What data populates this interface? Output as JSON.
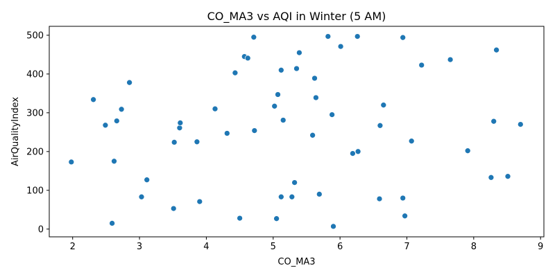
{
  "chart_data": {
    "type": "scatter",
    "title": "CO_MA3 vs AQI in Winter (5 AM)",
    "xlabel": "CO_MA3",
    "ylabel": "AirQualityIndex",
    "xlim": [
      1.65,
      9.05
    ],
    "ylim": [
      -20,
      523
    ],
    "xticks": [
      2,
      3,
      4,
      5,
      6,
      7,
      8,
      9
    ],
    "yticks": [
      0,
      100,
      200,
      300,
      400,
      500
    ],
    "grid": false,
    "legend": "none",
    "marker_color": "#1f77b4",
    "points": [
      [
        1.98,
        173
      ],
      [
        2.31,
        334
      ],
      [
        2.49,
        268
      ],
      [
        2.59,
        15
      ],
      [
        2.62,
        175
      ],
      [
        2.66,
        279
      ],
      [
        2.73,
        309
      ],
      [
        2.85,
        378
      ],
      [
        3.03,
        83
      ],
      [
        3.11,
        127
      ],
      [
        3.51,
        53
      ],
      [
        3.52,
        224
      ],
      [
        3.6,
        261
      ],
      [
        3.61,
        274
      ],
      [
        3.86,
        225
      ],
      [
        3.9,
        71
      ],
      [
        4.13,
        310
      ],
      [
        4.31,
        247
      ],
      [
        4.43,
        403
      ],
      [
        4.5,
        28
      ],
      [
        4.57,
        445
      ],
      [
        4.62,
        441
      ],
      [
        4.71,
        495
      ],
      [
        4.72,
        254
      ],
      [
        5.02,
        317
      ],
      [
        5.05,
        27
      ],
      [
        5.07,
        347
      ],
      [
        5.12,
        410
      ],
      [
        5.12,
        83
      ],
      [
        5.15,
        281
      ],
      [
        5.28,
        83
      ],
      [
        5.32,
        120
      ],
      [
        5.35,
        414
      ],
      [
        5.39,
        455
      ],
      [
        5.59,
        242
      ],
      [
        5.62,
        389
      ],
      [
        5.64,
        339
      ],
      [
        5.69,
        90
      ],
      [
        5.82,
        497
      ],
      [
        5.88,
        295
      ],
      [
        5.9,
        7
      ],
      [
        6.01,
        471
      ],
      [
        6.19,
        195
      ],
      [
        6.26,
        497
      ],
      [
        6.27,
        200
      ],
      [
        6.59,
        78
      ],
      [
        6.6,
        267
      ],
      [
        6.65,
        320
      ],
      [
        6.94,
        494
      ],
      [
        6.94,
        80
      ],
      [
        6.97,
        34
      ],
      [
        7.07,
        227
      ],
      [
        7.22,
        423
      ],
      [
        7.65,
        437
      ],
      [
        7.91,
        202
      ],
      [
        8.26,
        133
      ],
      [
        8.3,
        278
      ],
      [
        8.34,
        462
      ],
      [
        8.51,
        136
      ],
      [
        8.7,
        270
      ]
    ]
  }
}
